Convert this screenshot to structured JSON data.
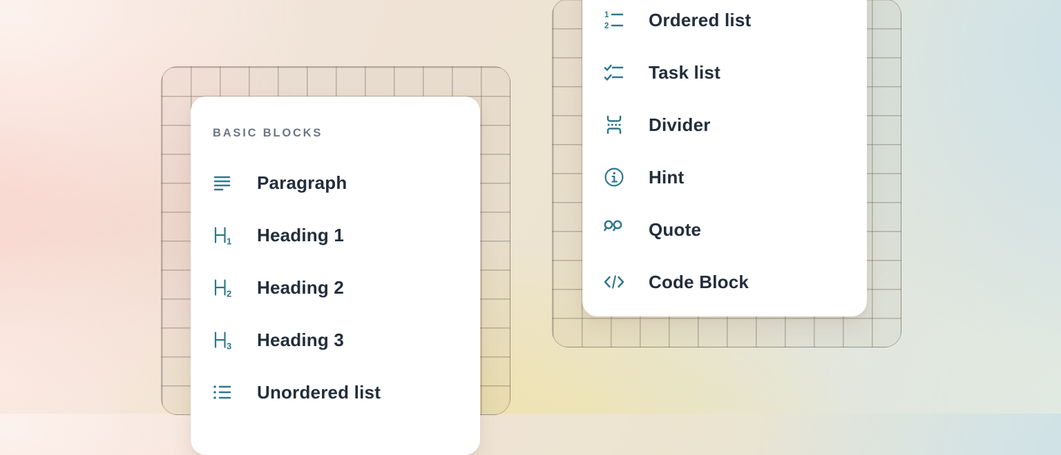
{
  "colors": {
    "icon_teal": "#2f768c",
    "item_text": "#232e3c",
    "section_label_gray": "#6f7683",
    "card_background": "#ffffff",
    "grid_line": "rgba(108,97,88,0.40)",
    "grid_tint": "rgba(125,102,88,0.055)",
    "bg_pink": "#f8cec6",
    "bg_yellow": "#f0e2a0",
    "bg_blue": "#cbe1e9"
  },
  "cards": [
    {
      "name": "basic-blocks",
      "section_label": "BASIC BLOCKS",
      "items": [
        {
          "label": "Paragraph",
          "icon": "paragraph-icon"
        },
        {
          "label": "Heading 1",
          "icon": "heading-1-icon"
        },
        {
          "label": "Heading 2",
          "icon": "heading-2-icon"
        },
        {
          "label": "Heading 3",
          "icon": "heading-3-icon"
        },
        {
          "label": "Unordered list",
          "icon": "unordered-list-icon"
        }
      ]
    },
    {
      "name": "more-blocks",
      "items": [
        {
          "label": "Ordered list",
          "icon": "ordered-list-icon"
        },
        {
          "label": "Task list",
          "icon": "task-list-icon"
        },
        {
          "label": "Divider",
          "icon": "divider-icon"
        },
        {
          "label": "Hint",
          "icon": "hint-icon"
        },
        {
          "label": "Quote",
          "icon": "quote-icon"
        },
        {
          "label": "Code Block",
          "icon": "code-block-icon"
        }
      ]
    }
  ]
}
